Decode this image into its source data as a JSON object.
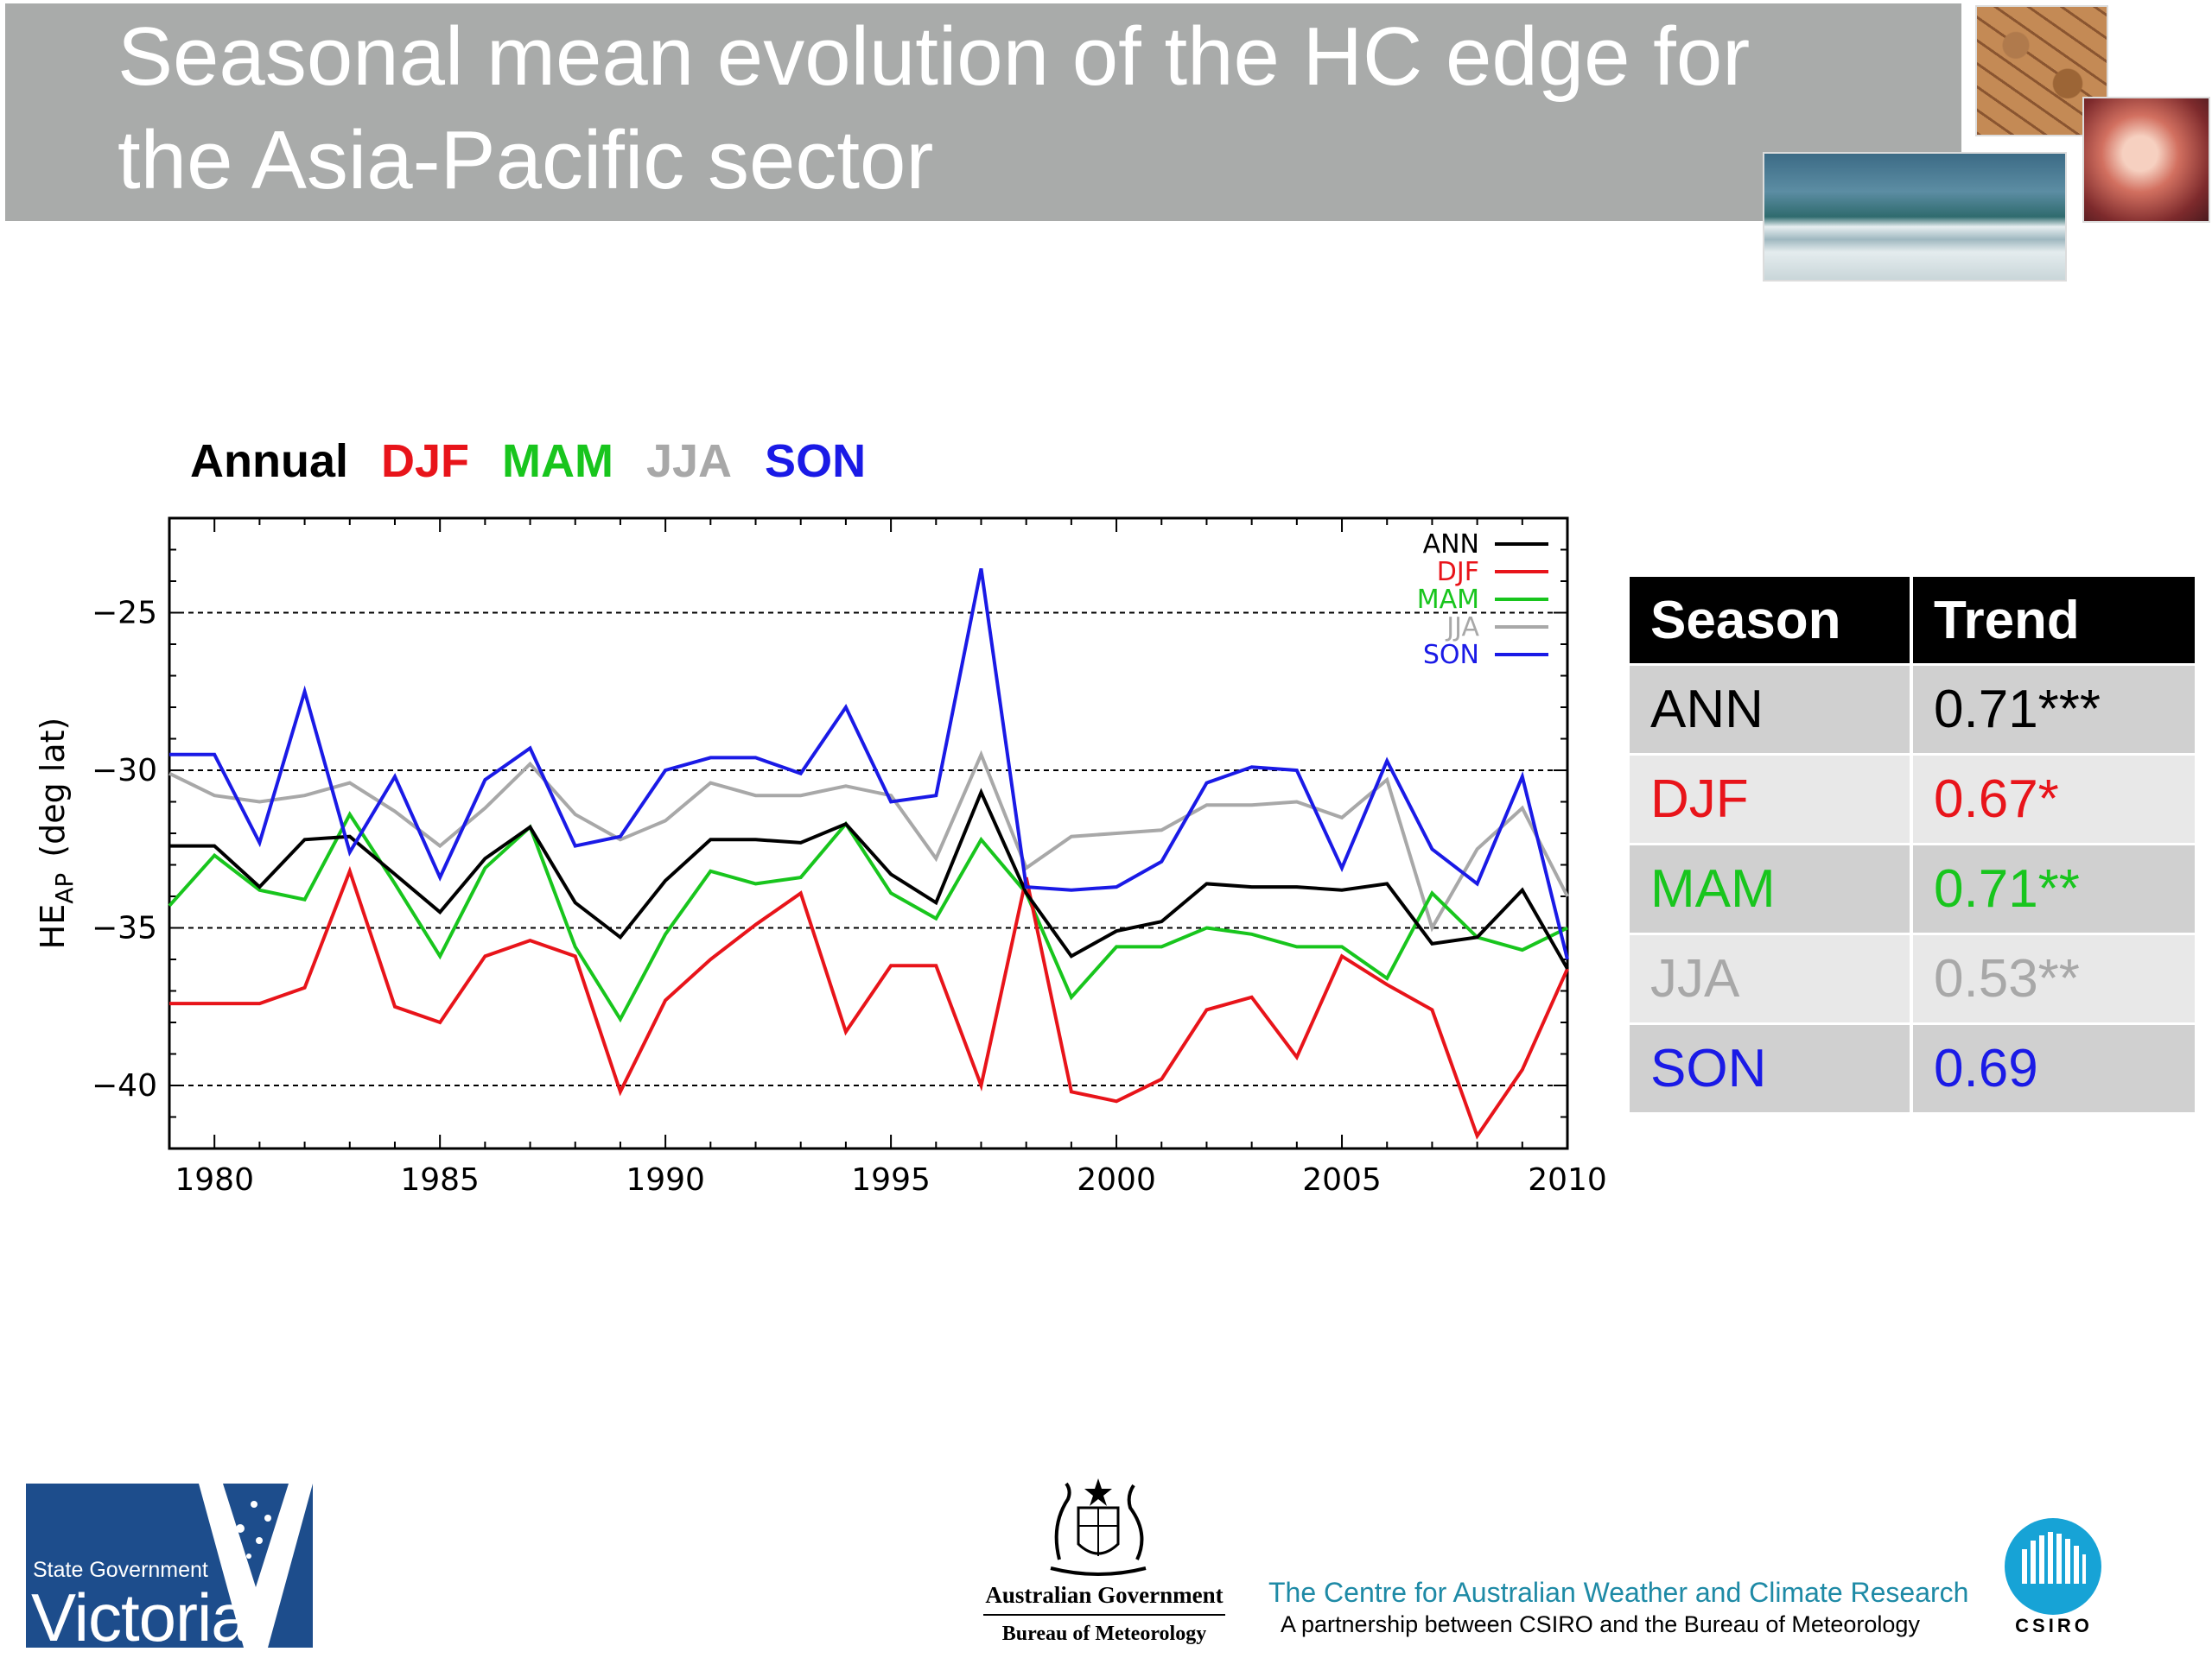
{
  "slide": {
    "title_line1": "Seasonal mean evolution of the HC edge for",
    "title_line2": "the Asia-Pacific sector"
  },
  "chart_legend_title": [
    {
      "label": "Annual",
      "color": "#000000"
    },
    {
      "label": "DJF",
      "color": "#e8141a"
    },
    {
      "label": "MAM",
      "color": "#18c51d"
    },
    {
      "label": "JJA",
      "color": "#a8a8a8"
    },
    {
      "label": "SON",
      "color": "#1a1ae6"
    }
  ],
  "chart_data": {
    "type": "line",
    "ylabel_main": "HE",
    "ylabel_sub": "AP",
    "ylabel_tail": "(deg lat)",
    "xlim": [
      1979,
      2010
    ],
    "ylim": [
      -42,
      -22
    ],
    "xticks": [
      1980,
      1985,
      1990,
      1995,
      2000,
      2005,
      2010
    ],
    "yticks": [
      -25,
      -30,
      -35,
      -40
    ],
    "grid": "horizontal dashed at y ticks",
    "legend_position": "top-right",
    "x": [
      1979,
      1980,
      1981,
      1982,
      1983,
      1984,
      1985,
      1986,
      1987,
      1988,
      1989,
      1990,
      1991,
      1992,
      1993,
      1994,
      1995,
      1996,
      1997,
      1998,
      1999,
      2000,
      2001,
      2002,
      2003,
      2004,
      2005,
      2006,
      2007,
      2008,
      2009,
      2010
    ],
    "series": [
      {
        "name": "ANN",
        "color": "#000000",
        "values": [
          -32.4,
          -32.4,
          -33.7,
          -32.2,
          -32.1,
          -33.3,
          -34.5,
          -32.8,
          -31.8,
          -34.2,
          -35.3,
          -33.5,
          -32.2,
          -32.2,
          -32.3,
          -31.7,
          -33.3,
          -34.2,
          -30.7,
          -33.9,
          -35.9,
          -35.1,
          -34.8,
          -33.6,
          -33.7,
          -33.7,
          -33.8,
          -33.6,
          -35.5,
          -35.3,
          -33.8,
          -36.3
        ]
      },
      {
        "name": "DJF",
        "color": "#e8141a",
        "values": [
          -37.4,
          -37.4,
          -37.4,
          -36.9,
          -33.2,
          -37.5,
          -38.0,
          -35.9,
          -35.4,
          -35.9,
          -40.2,
          -37.3,
          -36.0,
          -34.9,
          -33.9,
          -38.3,
          -36.2,
          -36.2,
          -40.0,
          -33.4,
          -40.2,
          -40.5,
          -39.8,
          -37.6,
          -37.2,
          -39.1,
          -35.9,
          -36.8,
          -37.6,
          -41.6,
          -39.5,
          -36.3
        ]
      },
      {
        "name": "MAM",
        "color": "#18c51d",
        "values": [
          -34.3,
          -32.7,
          -33.8,
          -34.1,
          -31.4,
          -33.6,
          -35.9,
          -33.1,
          -31.8,
          -35.6,
          -37.9,
          -35.2,
          -33.2,
          -33.6,
          -33.4,
          -31.7,
          -33.9,
          -34.7,
          -32.2,
          -33.9,
          -37.2,
          -35.6,
          -35.6,
          -35.0,
          -35.2,
          -35.6,
          -35.6,
          -36.6,
          -33.9,
          -35.3,
          -35.7,
          -35.0
        ]
      },
      {
        "name": "JJA",
        "color": "#a8a8a8",
        "values": [
          -30.1,
          -30.8,
          -31.0,
          -30.8,
          -30.4,
          -31.3,
          -32.4,
          -31.2,
          -29.8,
          -31.4,
          -32.2,
          -31.6,
          -30.4,
          -30.8,
          -30.8,
          -30.5,
          -30.8,
          -32.8,
          -29.5,
          -33.1,
          -32.1,
          -32.0,
          -31.9,
          -31.1,
          -31.1,
          -31.0,
          -31.5,
          -30.3,
          -35.0,
          -32.5,
          -31.2,
          -34.0
        ]
      },
      {
        "name": "SON",
        "color": "#1a1ae6",
        "values": [
          -29.5,
          -29.5,
          -32.3,
          -27.5,
          -32.6,
          -30.2,
          -33.4,
          -30.3,
          -29.3,
          -32.4,
          -32.1,
          -30.0,
          -29.6,
          -29.6,
          -30.1,
          -28.0,
          -31.0,
          -30.8,
          -23.6,
          -33.7,
          -33.8,
          -33.7,
          -32.9,
          -30.4,
          -29.9,
          -30.0,
          -33.1,
          -29.7,
          -32.5,
          -33.6,
          -30.2,
          -36.0
        ]
      }
    ]
  },
  "trend_table": {
    "headers": [
      "Season",
      "Trend"
    ],
    "rows": [
      {
        "season": "ANN",
        "trend": "0.71***",
        "color": "#000000"
      },
      {
        "season": "DJF",
        "trend": "0.67*",
        "color": "#e8141a"
      },
      {
        "season": "MAM",
        "trend": "0.71**",
        "color": "#18c51d"
      },
      {
        "season": "JJA",
        "trend": "0.53**",
        "color": "#a8a8a8"
      },
      {
        "season": "SON",
        "trend": "0.69",
        "color": "#1a1ae6"
      }
    ]
  },
  "footer": {
    "vic_small": "State Government",
    "vic_big": "Victoria",
    "gov_line1": "Australian Government",
    "gov_line2": "Bureau of Meteorology",
    "cawcr_line1": "The Centre for Australian Weather and Climate Research",
    "cawcr_line2": "A partnership between CSIRO and the Bureau of Meteorology",
    "csiro_word": "CSIRO"
  }
}
